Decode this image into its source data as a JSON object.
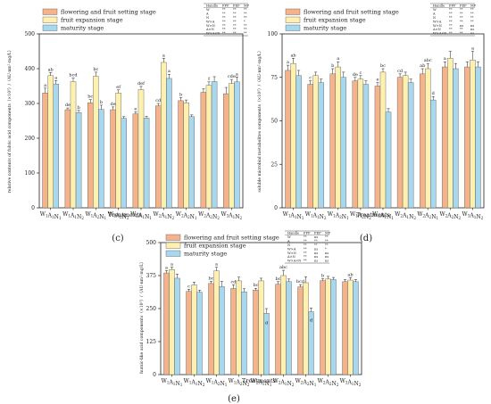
{
  "colors": {
    "flowering": "#F4B38A",
    "expansion": "#FEF1B0",
    "maturity": "#A7D8EE",
    "edge": "#555555"
  },
  "legend_labels": [
    "flowering and fruit setting stage",
    "fruit expansion stage",
    "maturity stage"
  ],
  "chart_data": [
    {
      "type": "bar",
      "panel_label": "(c)",
      "ylabel": "relative contents of fulvic acid components（×10⁵）/（AU·nm²·mg/L）",
      "xlabel": "Treatments",
      "ylim": [
        0,
        500
      ],
      "yticks": [
        0,
        100,
        200,
        300,
        400,
        500
      ],
      "grid": false,
      "legend_position": "top-left",
      "categories": [
        "W1A1N1",
        "W1A1N2",
        "W1A2N1",
        "W1A2N2",
        "W2A1N1",
        "W2A1N2",
        "W2A2N1",
        "W2A2N2",
        "W3A1N2"
      ],
      "series": [
        {
          "name": "flowering and fruit setting stage",
          "values": [
            330,
            282,
            302,
            282,
            270,
            293,
            308,
            332,
            328
          ],
          "errors": [
            14,
            5,
            9,
            8,
            6,
            7,
            9,
            10,
            18
          ],
          "labels": [
            "a",
            "de",
            "bc",
            "de",
            "e",
            "cd",
            "b",
            "",
            ""
          ]
        },
        {
          "name": "fruit expansion stage",
          "values": [
            380,
            363,
            378,
            330,
            340,
            418,
            302,
            352,
            357
          ],
          "errors": [
            9,
            10,
            12,
            9,
            9,
            12,
            8,
            10,
            12
          ],
          "labels": [
            "ab",
            "bcd",
            "bc",
            "ef",
            "def",
            "a",
            "",
            "f",
            "cde"
          ]
        },
        {
          "name": "maturity stage",
          "values": [
            356,
            274,
            283,
            257,
            258,
            372,
            262,
            363,
            362
          ],
          "errors": [
            10,
            6,
            12,
            5,
            5,
            12,
            5,
            14,
            14
          ],
          "labels": [
            "a",
            "b",
            "b",
            "",
            "",
            "a",
            "",
            "",
            "a"
          ]
        }
      ],
      "table": {
        "header": [
          "Handle",
          "FFP",
          "FEP",
          "MP"
        ],
        "rows": [
          [
            "W",
            "**",
            "**",
            "**"
          ],
          [
            "A",
            "**",
            "**",
            "**"
          ],
          [
            "N",
            "**",
            "**",
            "**"
          ],
          [
            "W×A",
            "**",
            "**",
            "*"
          ],
          [
            "W×N",
            "**",
            "**",
            "**"
          ],
          [
            "A×N",
            "**",
            "**",
            "**"
          ],
          [
            "W×A×N",
            "**",
            "**",
            "**"
          ]
        ]
      }
    },
    {
      "type": "bar",
      "panel_label": "(d)",
      "ylabel": "soluble microbial metabolites components（×10⁵）/（AU·nm²·mg/L）",
      "xlabel": "Treatments",
      "ylim": [
        0,
        100
      ],
      "yticks": [
        0,
        25,
        50,
        75,
        100
      ],
      "grid": false,
      "legend_position": "top-left",
      "categories": [
        "W1A1N1",
        "W1A1N2",
        "W1A2N1",
        "W1A2N2",
        "W2A1N1",
        "W2A1N2",
        "W2A2N1",
        "W2A2N2",
        "W3A1N2"
      ],
      "series": [
        {
          "name": "flowering and fruit setting stage",
          "values": [
            79,
            71,
            77,
            73,
            70,
            75,
            77,
            81,
            81
          ],
          "errors": [
            3,
            2,
            3,
            2,
            2,
            2,
            3,
            3,
            3
          ],
          "labels": [
            "a",
            "c",
            "b",
            "de",
            "e",
            "cd",
            "ab",
            "a",
            ""
          ]
        },
        {
          "name": "fruit expansion stage",
          "values": [
            83,
            76,
            81,
            74,
            78,
            76,
            80,
            86,
            85
          ],
          "errors": [
            3,
            2,
            3,
            2,
            2,
            2,
            3,
            4,
            5
          ],
          "labels": [
            "ab",
            "",
            "a",
            "c",
            "bc",
            "",
            "abc",
            "",
            "a"
          ]
        },
        {
          "name": "maturity stage",
          "values": [
            76,
            72,
            75,
            71,
            55,
            72,
            62,
            80,
            81
          ],
          "errors": [
            3,
            2,
            3,
            2,
            2,
            2,
            2,
            3,
            3
          ],
          "labels": [
            "",
            "",
            "",
            "",
            "",
            "",
            "d",
            "",
            ""
          ]
        }
      ],
      "table": {
        "header": [
          "Handle",
          "FFP",
          "FEP",
          "MP"
        ],
        "rows": [
          [
            "W",
            "**",
            "**",
            "**"
          ],
          [
            "A",
            "**",
            "**",
            "**"
          ],
          [
            "N",
            "**",
            "**",
            "**"
          ],
          [
            "W×A",
            "**",
            "**",
            "**"
          ],
          [
            "W×N",
            "**",
            "ns",
            "ns"
          ],
          [
            "A×N",
            "**",
            "**",
            "ns"
          ],
          [
            "W×A×N",
            "**",
            "**",
            "ns"
          ]
        ]
      }
    },
    {
      "type": "bar",
      "panel_label": "(e)",
      "ylabel": "humic-like acid components（×10⁵）/（AU·nm²·mg/L）",
      "xlabel": "Treatments",
      "ylim": [
        0,
        500
      ],
      "yticks": [
        0,
        125,
        250,
        375,
        500
      ],
      "grid": false,
      "legend_position": "top-left",
      "categories": [
        "W1A1N1",
        "W1A1N2",
        "W1A2N1",
        "W1A2N2",
        "W2A1N1",
        "W2A1N2",
        "W2A2N1",
        "W2A2N2",
        "W3A1N2"
      ],
      "series": [
        {
          "name": "flowering and fruit setting stage",
          "values": [
            385,
            315,
            345,
            326,
            320,
            342,
            332,
            356,
            352
          ],
          "errors": [
            9,
            8,
            8,
            14,
            7,
            10,
            9,
            7,
            8
          ],
          "labels": [
            "a",
            "c",
            "bc",
            "cd",
            "bc",
            "bc",
            "bcd",
            "b",
            ""
          ]
        },
        {
          "name": "fruit expansion stage",
          "values": [
            398,
            340,
            393,
            355,
            355,
            375,
            348,
            362,
            358
          ],
          "errors": [
            9,
            10,
            14,
            14,
            10,
            20,
            22,
            10,
            9
          ],
          "labels": [
            "a",
            "",
            "a",
            "",
            "",
            "abc",
            "",
            "",
            "ab"
          ]
        },
        {
          "name": "maturity stage",
          "values": [
            365,
            312,
            333,
            313,
            232,
            352,
            238,
            360,
            352
          ],
          "errors": [
            16,
            8,
            20,
            12,
            18,
            10,
            14,
            8,
            8
          ],
          "labels": [
            "",
            "",
            "",
            "",
            "d",
            "",
            "d",
            "",
            ""
          ]
        }
      ],
      "table": {
        "header": [
          "Handle",
          "FFP",
          "FEP",
          "MP"
        ],
        "rows": [
          [
            "W",
            "**",
            "ns",
            "**"
          ],
          [
            "A",
            "**",
            "**",
            "**"
          ],
          [
            "N",
            "**",
            "**",
            "**"
          ],
          [
            "W×A",
            "**",
            "ns",
            "*"
          ],
          [
            "W×N",
            "**",
            "ns",
            "ns"
          ],
          [
            "A×N",
            "**",
            "ns",
            "ns"
          ],
          [
            "W×A×N",
            "**",
            "ns",
            "ns"
          ]
        ]
      }
    }
  ]
}
